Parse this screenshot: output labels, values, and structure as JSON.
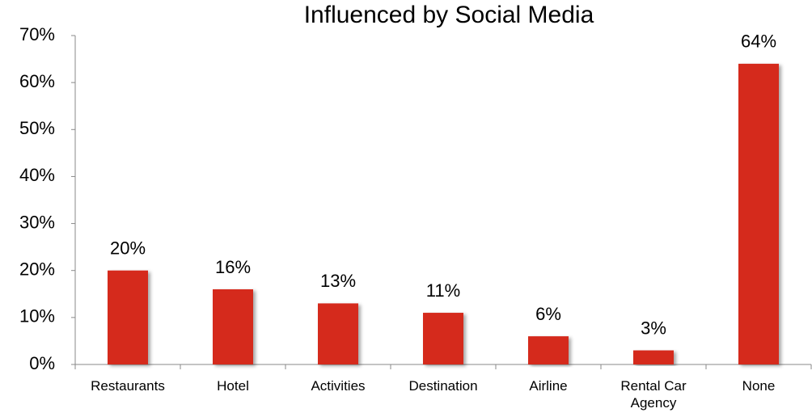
{
  "chart_data": {
    "type": "bar",
    "title": "Influenced by Social Media",
    "categories": [
      "Restaurants",
      "Hotel",
      "Activities",
      "Destination",
      "Airline",
      "Rental Car Agency",
      "None"
    ],
    "values": [
      20,
      16,
      13,
      11,
      6,
      3,
      64
    ],
    "value_labels": [
      "20%",
      "16%",
      "13%",
      "11%",
      "6%",
      "3%",
      "64%"
    ],
    "color": "#d52b1e",
    "ylim": [
      0,
      70
    ],
    "yticks": [
      {
        "value": 0,
        "label": "0%"
      },
      {
        "value": 10,
        "label": "10%"
      },
      {
        "value": 20,
        "label": "20%"
      },
      {
        "value": 30,
        "label": "30%"
      },
      {
        "value": 40,
        "label": "40%"
      },
      {
        "value": 50,
        "label": "50%"
      },
      {
        "value": 60,
        "label": "60%"
      },
      {
        "value": 70,
        "label": "70%"
      }
    ],
    "grid": false
  }
}
